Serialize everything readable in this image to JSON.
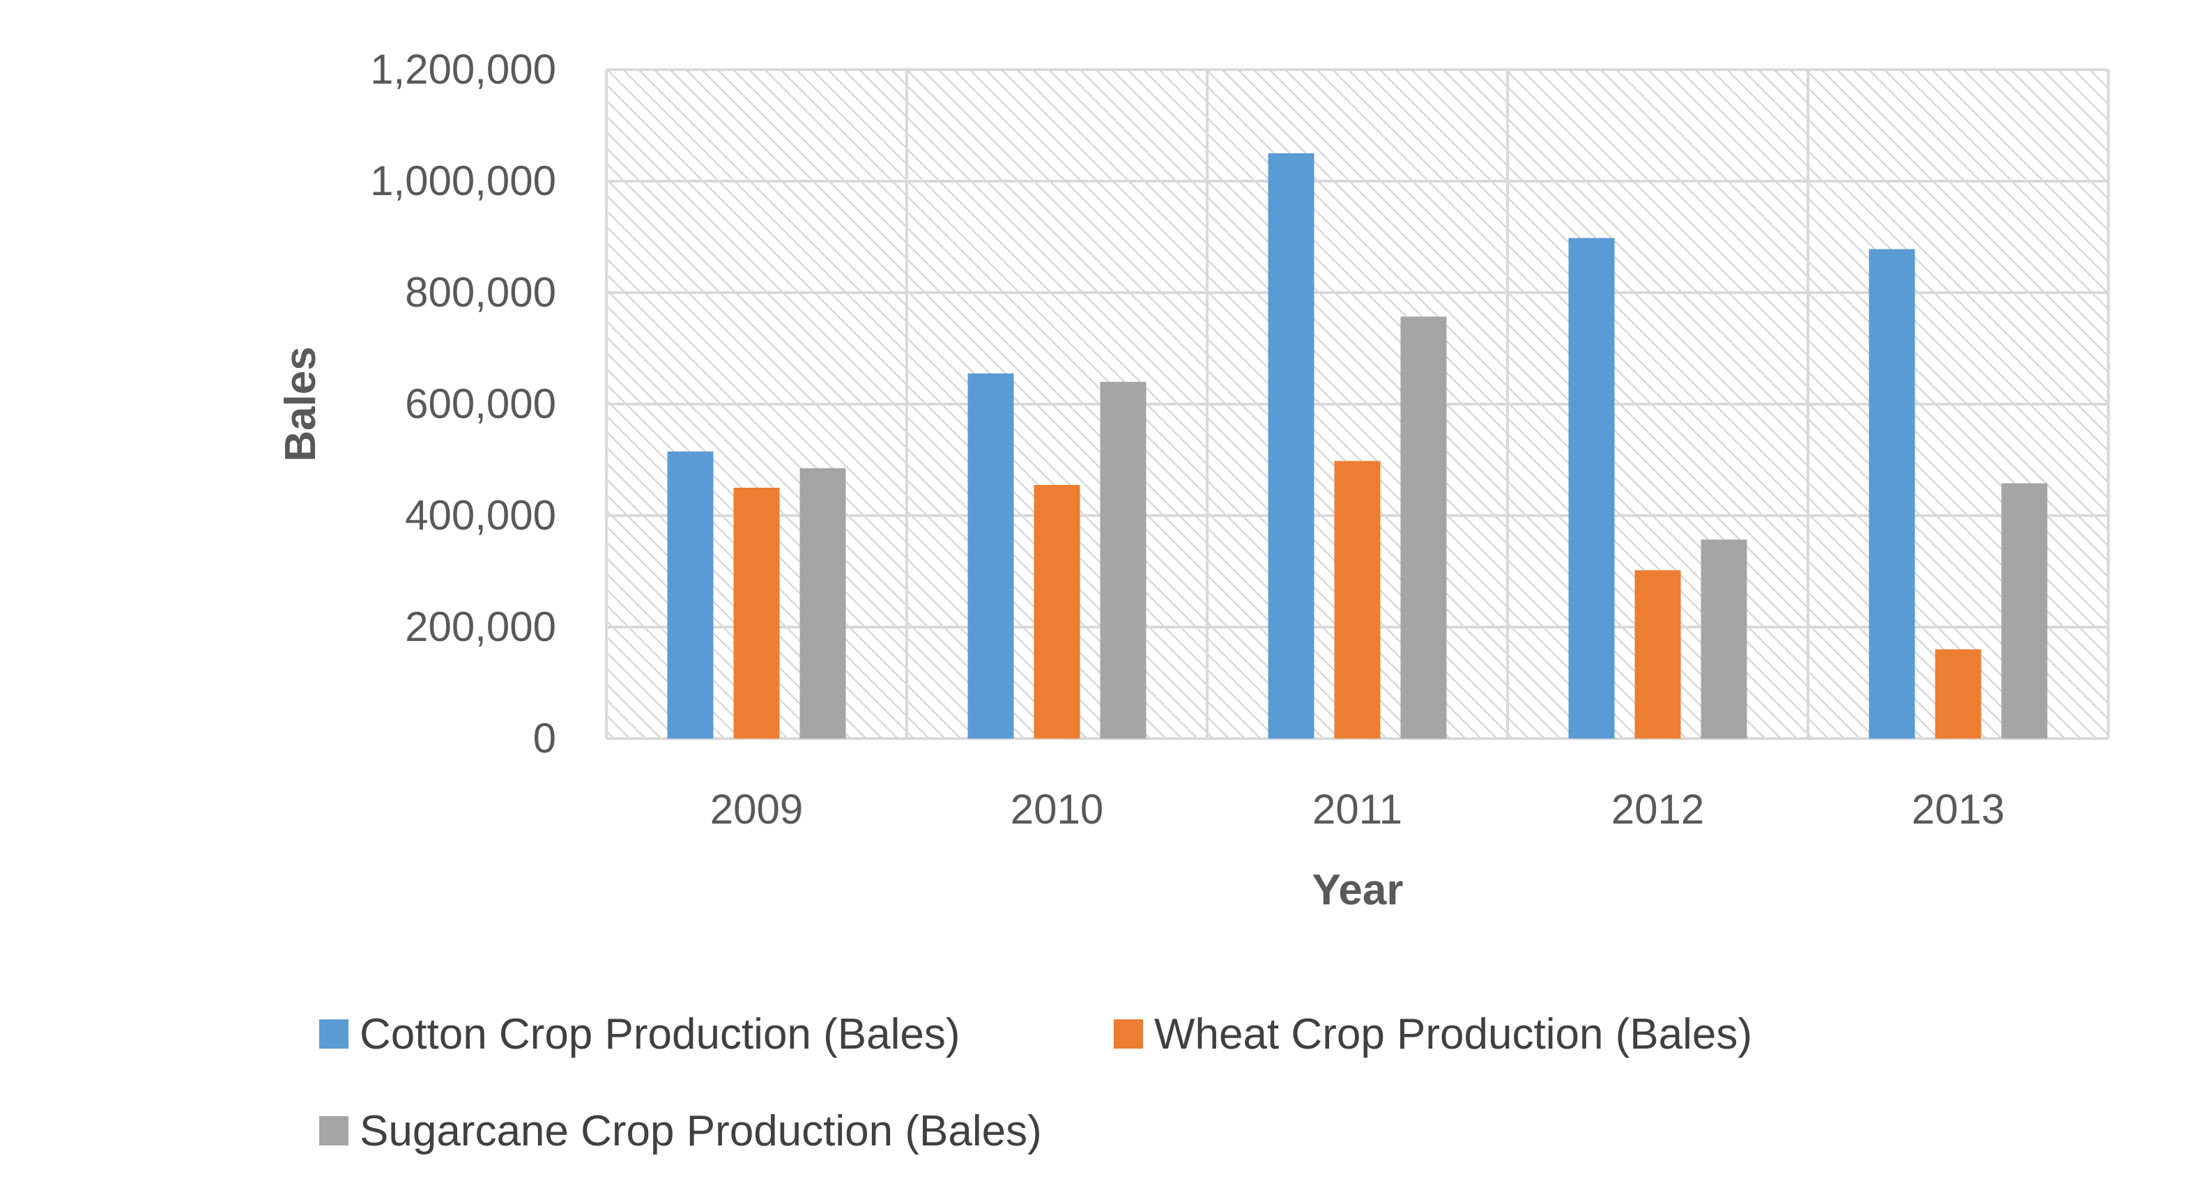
{
  "chart_data": {
    "type": "bar",
    "title": "",
    "xlabel": "Year",
    "ylabel": "Bales",
    "categories": [
      "2009",
      "2010",
      "2011",
      "2012",
      "2013"
    ],
    "ylim": [
      0,
      1200000
    ],
    "yticks": [
      0,
      200000,
      400000,
      600000,
      800000,
      1000000,
      1200000
    ],
    "ytick_labels": [
      "0",
      "200,000",
      "400,000",
      "600,000",
      "800,000",
      "1,000,000",
      "1,200,000"
    ],
    "grid": true,
    "legend_position": "bottom",
    "series": [
      {
        "name": "Cotton Crop Production (Bales)",
        "color": "#5B9BD5",
        "values": [
          515000,
          655000,
          1050000,
          898000,
          878000
        ]
      },
      {
        "name": "Wheat Crop Production (Bales)",
        "color": "#ED7D31",
        "values": [
          450000,
          455000,
          498000,
          302000,
          160000
        ]
      },
      {
        "name": "Sugarcane Crop Production (Bales)",
        "color": "#A5A5A5",
        "values": [
          485000,
          640000,
          757000,
          357000,
          458000
        ]
      }
    ]
  }
}
